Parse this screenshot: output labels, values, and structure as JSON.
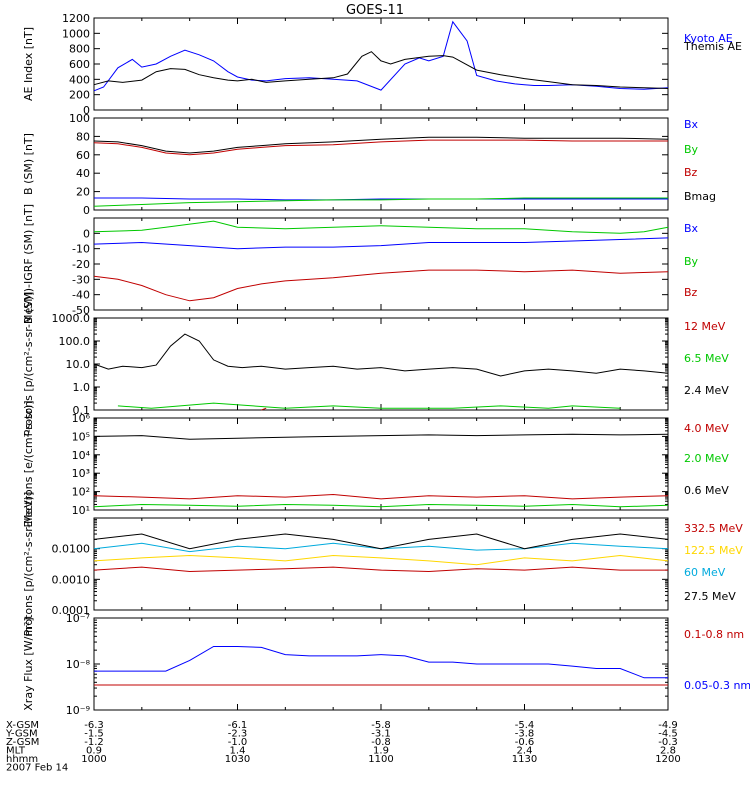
{
  "title": "GOES-11",
  "footer": {
    "rows": [
      {
        "label": "X-GSM",
        "values": [
          "-6.3",
          "-6.1",
          "-5.8",
          "-5.4",
          "-4.9"
        ]
      },
      {
        "label": "Y-GSM",
        "values": [
          "-1.5",
          "-2.3",
          "-3.1",
          "-3.8",
          "-4.5"
        ]
      },
      {
        "label": "Z-GSM",
        "values": [
          "-1.2",
          "-1.0",
          "-0.8",
          "-0.6",
          "-0.3"
        ]
      },
      {
        "label": "MLT",
        "values": [
          "0.9",
          "1.4",
          "1.9",
          "2.4",
          "2.8"
        ]
      },
      {
        "label": "hhmm",
        "values": [
          "1000",
          "1030",
          "1100",
          "1130",
          "1200"
        ]
      }
    ],
    "date": "2007 Feb 14"
  },
  "colors": {
    "black": "#000000",
    "blue": "#0000ff",
    "red": "#c00000",
    "green": "#00c800",
    "gold": "#ffd700",
    "cyan": "#00aadd"
  },
  "chart_data": [
    {
      "type": "line",
      "ylabel": "AE Index [nT]",
      "ylim": [
        0,
        1200
      ],
      "yscale": "linear",
      "yticks": [
        0,
        200,
        400,
        600,
        800,
        1000,
        1200
      ],
      "ytick_labels": [
        "0",
        "200",
        "400",
        "600",
        "800",
        "1000",
        "1200"
      ],
      "series": [
        {
          "name": "Kyoto AE",
          "color": "#0000ff",
          "x": [
            0,
            2,
            5,
            8,
            10,
            13,
            16,
            19,
            22,
            25,
            28,
            30,
            33,
            36,
            40,
            45,
            50,
            55,
            60,
            65,
            68,
            70,
            73,
            75,
            78,
            80,
            84,
            88,
            90,
            92,
            95,
            100,
            105,
            110,
            115,
            120
          ],
          "y": [
            250,
            300,
            550,
            660,
            560,
            600,
            700,
            780,
            720,
            640,
            500,
            430,
            390,
            380,
            410,
            420,
            400,
            380,
            260,
            600,
            680,
            640,
            700,
            1150,
            900,
            450,
            380,
            340,
            330,
            320,
            320,
            330,
            310,
            280,
            270,
            290
          ]
        },
        {
          "name": "Themis AE",
          "color": "#000000",
          "x": [
            0,
            3,
            6,
            10,
            13,
            16,
            19,
            22,
            25,
            28,
            30,
            33,
            36,
            40,
            45,
            50,
            53,
            56,
            58,
            60,
            62,
            65,
            70,
            73,
            75,
            80,
            85,
            90,
            95,
            100,
            105,
            110,
            115,
            120
          ],
          "y": [
            330,
            380,
            360,
            390,
            500,
            540,
            530,
            460,
            420,
            390,
            380,
            400,
            360,
            380,
            400,
            420,
            470,
            700,
            760,
            640,
            600,
            660,
            700,
            710,
            690,
            520,
            460,
            410,
            370,
            330,
            320,
            300,
            290,
            280
          ]
        }
      ]
    },
    {
      "type": "line",
      "ylabel": "B (SM) [nT]",
      "ylim": [
        0,
        100
      ],
      "yscale": "linear",
      "yticks": [
        0,
        20,
        40,
        60,
        80,
        100
      ],
      "ytick_labels": [
        "0",
        "20",
        "40",
        "60",
        "80",
        "100"
      ],
      "series": [
        {
          "name": "Bx",
          "color": "#0000ff",
          "x": [
            0,
            10,
            20,
            30,
            40,
            50,
            60,
            70,
            80,
            90,
            100,
            110,
            120
          ],
          "y": [
            13,
            13,
            12,
            12,
            11,
            11,
            12,
            12,
            12,
            12,
            12,
            12,
            12
          ]
        },
        {
          "name": "By",
          "color": "#00c800",
          "x": [
            0,
            10,
            20,
            30,
            40,
            50,
            60,
            70,
            80,
            90,
            100,
            110,
            120
          ],
          "y": [
            4,
            6,
            8,
            9,
            10,
            11,
            11,
            12,
            12,
            13,
            13,
            13,
            13
          ]
        },
        {
          "name": "Bz",
          "color": "#c00000",
          "x": [
            0,
            5,
            10,
            15,
            20,
            25,
            30,
            35,
            40,
            50,
            60,
            70,
            80,
            90,
            100,
            110,
            120
          ],
          "y": [
            73,
            72,
            68,
            62,
            60,
            62,
            66,
            68,
            70,
            71,
            74,
            76,
            76,
            76,
            75,
            75,
            75
          ]
        },
        {
          "name": "Bmag",
          "color": "#000000",
          "x": [
            0,
            5,
            10,
            15,
            20,
            25,
            30,
            35,
            40,
            50,
            60,
            70,
            80,
            90,
            100,
            110,
            120
          ],
          "y": [
            75,
            74,
            70,
            64,
            62,
            64,
            68,
            70,
            72,
            74,
            77,
            79,
            79,
            78,
            78,
            78,
            77
          ]
        }
      ]
    },
    {
      "type": "line",
      "ylabel": "B (SM)-IGRF (SM) [nT]",
      "ylim": [
        -50,
        10
      ],
      "yscale": "linear",
      "yticks": [
        -50,
        -40,
        -30,
        -20,
        -10,
        0
      ],
      "ytick_labels": [
        "-50",
        "-40",
        "-30",
        "-20",
        "-10",
        "0"
      ],
      "series": [
        {
          "name": "Bx",
          "color": "#0000ff",
          "x": [
            0,
            10,
            20,
            30,
            40,
            50,
            60,
            70,
            80,
            90,
            100,
            110,
            120
          ],
          "y": [
            -7,
            -6,
            -8,
            -10,
            -9,
            -9,
            -8,
            -6,
            -6,
            -6,
            -5,
            -4,
            -3
          ]
        },
        {
          "name": "By",
          "color": "#00c800",
          "x": [
            0,
            10,
            15,
            20,
            25,
            30,
            40,
            50,
            60,
            70,
            80,
            90,
            100,
            110,
            115,
            120
          ],
          "y": [
            1,
            2,
            4,
            6,
            8,
            4,
            3,
            4,
            5,
            4,
            3,
            3,
            1,
            0,
            1,
            4
          ]
        },
        {
          "name": "Bz",
          "color": "#c00000",
          "x": [
            0,
            5,
            10,
            15,
            20,
            25,
            30,
            35,
            40,
            50,
            60,
            70,
            80,
            90,
            100,
            110,
            120
          ],
          "y": [
            -28,
            -30,
            -34,
            -40,
            -44,
            -42,
            -36,
            -33,
            -31,
            -29,
            -26,
            -24,
            -24,
            -25,
            -24,
            -26,
            -25
          ]
        }
      ]
    },
    {
      "type": "line",
      "ylabel": "Protons [p/(cm²-s-sr-MeV)]",
      "ylim": [
        0.1,
        1000
      ],
      "yscale": "log",
      "yticks": [
        0.1,
        1,
        10,
        100,
        1000
      ],
      "ytick_labels": [
        "0.1",
        "1.0",
        "10.0",
        "100.0",
        "1000.0"
      ],
      "series": [
        {
          "name": "12 MeV",
          "color": "#c00000",
          "x": [
            35,
            36
          ],
          "y": [
            0.1,
            0.12
          ]
        },
        {
          "name": "6.5 MeV",
          "color": "#00c800",
          "x": [
            5,
            12,
            25,
            40,
            50,
            60,
            75,
            85,
            95,
            100,
            110
          ],
          "y": [
            0.15,
            0.12,
            0.2,
            0.12,
            0.15,
            0.12,
            0.12,
            0.15,
            0.12,
            0.15,
            0.12
          ]
        },
        {
          "name": "2.4 MeV",
          "color": "#000000",
          "x": [
            0,
            3,
            6,
            10,
            13,
            16,
            19,
            22,
            25,
            28,
            31,
            35,
            40,
            45,
            50,
            55,
            60,
            65,
            70,
            75,
            80,
            85,
            90,
            95,
            100,
            105,
            110,
            115,
            120
          ],
          "y": [
            10,
            6,
            8,
            7,
            9,
            60,
            200,
            100,
            15,
            8,
            7,
            8,
            6,
            7,
            8,
            6,
            7,
            5,
            6,
            7,
            6,
            3,
            5,
            6,
            5,
            4,
            6,
            5,
            4
          ]
        }
      ]
    },
    {
      "type": "line",
      "ylabel": "Electrons [e/(cm²-s-sr)]",
      "ylim": [
        10,
        1000000
      ],
      "yscale": "log",
      "yticks": [
        10,
        100,
        1000,
        10000,
        100000,
        1000000
      ],
      "ytick_labels": [
        "10¹",
        "10²",
        "10³",
        "10⁴",
        "10⁵",
        "10⁶"
      ],
      "series": [
        {
          "name": "4.0 MeV",
          "color": "#c00000",
          "x": [
            0,
            10,
            20,
            30,
            40,
            50,
            60,
            70,
            80,
            90,
            100,
            110,
            120
          ],
          "y": [
            60,
            50,
            40,
            60,
            50,
            70,
            40,
            60,
            50,
            60,
            40,
            50,
            60
          ]
        },
        {
          "name": "2.0 MeV",
          "color": "#00c800",
          "x": [
            0,
            10,
            20,
            30,
            40,
            50,
            60,
            70,
            80,
            90,
            100,
            110,
            120
          ],
          "y": [
            15,
            20,
            18,
            16,
            20,
            18,
            15,
            20,
            18,
            16,
            20,
            15,
            18
          ]
        },
        {
          "name": "0.6 MeV",
          "color": "#000000",
          "x": [
            0,
            10,
            20,
            30,
            40,
            50,
            60,
            70,
            80,
            90,
            100,
            110,
            120
          ],
          "y": [
            100000,
            110000,
            70000,
            80000,
            90000,
            100000,
            110000,
            120000,
            110000,
            120000,
            130000,
            120000,
            130000
          ]
        }
      ]
    },
    {
      "type": "line",
      "ylabel": "Protons [p/(cm²-s-sr-MeV)]",
      "ylim": [
        0.0001,
        0.1
      ],
      "yscale": "log",
      "yticks": [
        0.0001,
        0.001,
        0.01
      ],
      "ytick_labels": [
        "0.0001",
        "0.0010",
        "0.0100"
      ],
      "series": [
        {
          "name": "332.5 MeV",
          "color": "#c00000",
          "x": [
            0,
            10,
            20,
            30,
            40,
            50,
            60,
            70,
            80,
            90,
            100,
            110,
            120
          ],
          "y": [
            0.002,
            0.0025,
            0.0018,
            0.002,
            0.0022,
            0.0025,
            0.002,
            0.0018,
            0.0022,
            0.002,
            0.0025,
            0.002,
            0.002
          ]
        },
        {
          "name": "122.5 MeV",
          "color": "#ffd700",
          "x": [
            0,
            10,
            20,
            30,
            40,
            50,
            60,
            70,
            80,
            90,
            100,
            110,
            120
          ],
          "y": [
            0.004,
            0.005,
            0.006,
            0.005,
            0.004,
            0.006,
            0.005,
            0.004,
            0.003,
            0.005,
            0.004,
            0.006,
            0.004
          ]
        },
        {
          "name": "60 MeV",
          "color": "#00aadd",
          "x": [
            0,
            10,
            20,
            30,
            40,
            50,
            60,
            70,
            80,
            90,
            100,
            110,
            120
          ],
          "y": [
            0.01,
            0.015,
            0.008,
            0.012,
            0.01,
            0.015,
            0.01,
            0.012,
            0.009,
            0.01,
            0.015,
            0.012,
            0.01
          ]
        },
        {
          "name": "27.5 MeV",
          "color": "#000000",
          "x": [
            0,
            10,
            20,
            30,
            40,
            50,
            60,
            70,
            80,
            90,
            100,
            110,
            120
          ],
          "y": [
            0.02,
            0.03,
            0.01,
            0.02,
            0.03,
            0.02,
            0.01,
            0.02,
            0.03,
            0.01,
            0.02,
            0.03,
            0.02
          ]
        }
      ]
    },
    {
      "type": "line",
      "ylabel": "Xray Flux [W/m²]",
      "ylim": [
        1e-09,
        1e-07
      ],
      "yscale": "log",
      "yticks": [
        1e-09,
        1e-08,
        1e-07
      ],
      "ytick_labels": [
        "10⁻⁹",
        "10⁻⁸",
        "10⁻⁷"
      ],
      "series": [
        {
          "name": "0.1-0.8 nm",
          "color": "#c00000",
          "x": [
            0,
            120
          ],
          "y": [
            3.5e-09,
            3.5e-09
          ]
        },
        {
          "name": "0.05-0.3 nm",
          "color": "#0000ff",
          "x": [
            0,
            10,
            15,
            20,
            25,
            30,
            35,
            40,
            45,
            50,
            55,
            60,
            65,
            70,
            75,
            80,
            85,
            90,
            95,
            100,
            105,
            110,
            115,
            120
          ],
          "y": [
            7e-09,
            7e-09,
            7e-09,
            1.2e-08,
            2.4e-08,
            2.4e-08,
            2.3e-08,
            1.6e-08,
            1.5e-08,
            1.5e-08,
            1.5e-08,
            1.6e-08,
            1.5e-08,
            1.1e-08,
            1.1e-08,
            1e-08,
            1e-08,
            1e-08,
            1e-08,
            9e-09,
            8e-09,
            8e-09,
            5e-09,
            5e-09
          ]
        }
      ]
    }
  ]
}
